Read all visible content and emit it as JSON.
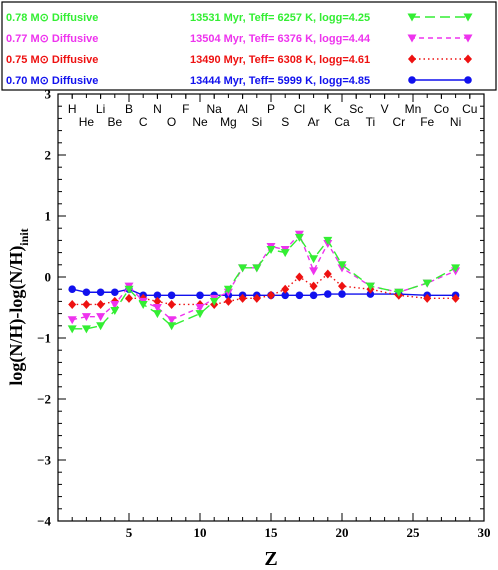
{
  "chart_data": {
    "type": "line",
    "xlabel": "Z",
    "ylabel": "log(N/H)-log(N/H)init",
    "xlim": [
      0,
      30
    ],
    "ylim": [
      -4,
      3
    ],
    "x_ticks": [
      "5",
      "10",
      "15",
      "20",
      "25",
      "30"
    ],
    "y_ticks": [
      "−4",
      "−3",
      "−2",
      "−1",
      "0",
      "1",
      "2",
      "3"
    ],
    "elements_row1": [
      "H",
      "Li",
      "B",
      "N",
      "F",
      "Na",
      "Al",
      "P",
      "Cl",
      "K",
      "Sc",
      "V",
      "Mn",
      "Co",
      "Cu"
    ],
    "elements_row2": [
      "He",
      "Be",
      "C",
      "O",
      "Ne",
      "Mg",
      "Si",
      "S",
      "Ar",
      "Ca",
      "Ti",
      "Cr",
      "Fe",
      "Ni"
    ],
    "series": [
      {
        "label_model": "0.78 M⊙ Diffusive",
        "label_params": "13531 Myr, Teff= 6257 K, logg=4.25",
        "color": "#33ee33",
        "marker": "triangle-down",
        "dash": "long-dash",
        "x": [
          1,
          2,
          3,
          4,
          5,
          6,
          7,
          8,
          10,
          11,
          12,
          13,
          14,
          15,
          16,
          17,
          18,
          19,
          20,
          22,
          24,
          26,
          28
        ],
        "y": [
          -0.85,
          -0.85,
          -0.8,
          -0.55,
          -0.2,
          -0.45,
          -0.6,
          -0.8,
          -0.6,
          -0.4,
          -0.2,
          0.15,
          0.15,
          0.45,
          0.4,
          0.65,
          0.3,
          0.6,
          0.2,
          -0.15,
          -0.25,
          -0.1,
          0.15
        ]
      },
      {
        "label_model": "0.77 M⊙ Diffusive",
        "label_params": "13504 Myr, Teff= 6376 K, logg=4.44",
        "color": "#ee33ee",
        "marker": "triangle-down",
        "dash": "short-dash",
        "x": [
          1,
          2,
          3,
          4,
          5,
          6,
          7,
          8,
          10,
          11,
          12,
          13,
          14,
          15,
          16,
          17,
          18,
          19,
          20,
          22,
          24,
          26,
          28
        ],
        "y": [
          -0.7,
          -0.65,
          -0.65,
          -0.45,
          -0.15,
          -0.4,
          -0.5,
          -0.7,
          -0.5,
          -0.35,
          -0.25,
          0.15,
          0.15,
          0.5,
          0.45,
          0.7,
          0.1,
          0.55,
          0.15,
          -0.15,
          -0.25,
          -0.1,
          0.1
        ]
      },
      {
        "label_model": "0.75 M⊙ Diffusive",
        "label_params": "13490 Myr, Teff= 6308 K, logg=4.61",
        "color": "#ee1111",
        "marker": "diamond",
        "dash": "dotted",
        "x": [
          1,
          2,
          3,
          4,
          5,
          6,
          7,
          8,
          10,
          11,
          12,
          13,
          14,
          15,
          16,
          17,
          18,
          19,
          20,
          22,
          24,
          26,
          28
        ],
        "y": [
          -0.45,
          -0.45,
          -0.45,
          -0.4,
          -0.35,
          -0.35,
          -0.4,
          -0.45,
          -0.45,
          -0.45,
          -0.4,
          -0.35,
          -0.35,
          -0.3,
          -0.2,
          0.0,
          -0.15,
          0.05,
          -0.15,
          -0.2,
          -0.3,
          -0.35,
          -0.35
        ]
      },
      {
        "label_model": "0.70 M⊙ Diffusive",
        "label_params": "13444 Myr, Teff= 5999 K, logg=4.85",
        "color": "#1111ee",
        "marker": "circle",
        "dash": "solid",
        "x": [
          1,
          2,
          3,
          4,
          5,
          6,
          7,
          8,
          10,
          11,
          12,
          13,
          14,
          15,
          16,
          17,
          18,
          19,
          20,
          22,
          24,
          26,
          28
        ],
        "y": [
          -0.2,
          -0.25,
          -0.25,
          -0.25,
          -0.2,
          -0.3,
          -0.3,
          -0.3,
          -0.3,
          -0.3,
          -0.3,
          -0.3,
          -0.3,
          -0.3,
          -0.3,
          -0.3,
          -0.3,
          -0.28,
          -0.28,
          -0.28,
          -0.28,
          -0.3,
          -0.3
        ]
      }
    ]
  }
}
